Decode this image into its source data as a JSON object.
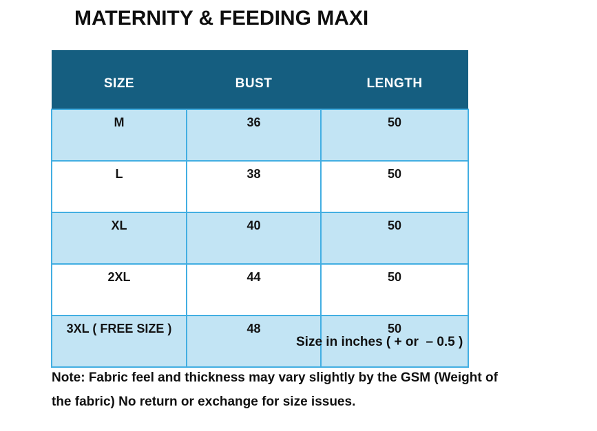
{
  "title": "MATERNITY & FEEDING MAXI",
  "table": {
    "columns": [
      "SIZE",
      "BUST",
      "LENGTH"
    ],
    "rows": [
      {
        "size": "M",
        "bust": "36",
        "length": "50"
      },
      {
        "size": "L",
        "bust": "38",
        "length": "50"
      },
      {
        "size": "XL",
        "bust": "40",
        "length": "50"
      },
      {
        "size": "2XL",
        "bust": "44",
        "length": "50"
      },
      {
        "size": "3XL ( FREE SIZE )",
        "bust": "48",
        "length": "50"
      }
    ]
  },
  "caption": "Size in inches ( + or  – 0.5 )",
  "note": {
    "lines": [
      "Note: Fabric feel and thickness may vary slightly by the GSM (Weight of",
      "the fabric) No return or exchange for size issues."
    ]
  },
  "colors": {
    "header_bg": "#155e80",
    "row_alt_bg": "#c2e4f4",
    "table_border": "#42aee2",
    "text": "#141414"
  }
}
